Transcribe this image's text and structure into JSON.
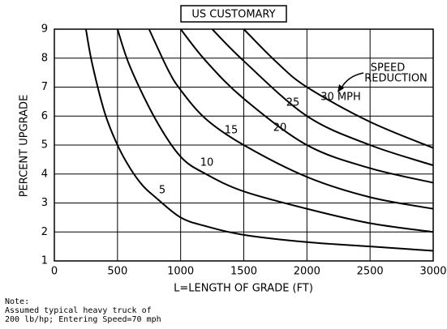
{
  "chart_data": {
    "type": "line",
    "title": "US CUSTOMARY",
    "xlabel": "L=LENGTH OF GRADE (FT)",
    "ylabel": "PERCENT UPGRADE",
    "annotation": [
      "SPEED",
      "REDUCTION"
    ],
    "note": [
      "Note:",
      "Assumed typical heavy truck of",
      "200 lb/hp; Entering Speed=70 mph"
    ],
    "xlim": [
      0,
      3000
    ],
    "ylim": [
      1,
      9
    ],
    "xticks": [
      0,
      500,
      1000,
      1500,
      2000,
      2500,
      3000
    ],
    "yticks": [
      1,
      2,
      3,
      4,
      5,
      6,
      7,
      8,
      9
    ],
    "grid": true,
    "series": [
      {
        "name": "5",
        "color": "#000000",
        "x": [
          250,
          300,
          400,
          500,
          600,
          700,
          800,
          1000,
          1200,
          1500,
          2000,
          2500,
          3000
        ],
        "values": [
          9,
          7.8,
          6.1,
          5.0,
          4.2,
          3.6,
          3.2,
          2.5,
          2.2,
          1.9,
          1.65,
          1.5,
          1.35
        ]
      },
      {
        "name": "10",
        "color": "#000000",
        "x": [
          500,
          600,
          800,
          1000,
          1200,
          1500,
          2000,
          2500,
          3000
        ],
        "values": [
          9,
          7.7,
          5.9,
          4.6,
          4.0,
          3.4,
          2.8,
          2.3,
          2.0
        ]
      },
      {
        "name": "15",
        "color": "#000000",
        "x": [
          750,
          900,
          1000,
          1200,
          1500,
          2000,
          2500,
          3000
        ],
        "values": [
          9,
          7.6,
          6.9,
          5.9,
          5.0,
          3.9,
          3.2,
          2.8
        ]
      },
      {
        "name": "20",
        "color": "#000000",
        "x": [
          1000,
          1200,
          1500,
          2000,
          2500,
          3000
        ],
        "values": [
          9,
          7.9,
          6.6,
          5.0,
          4.2,
          3.7
        ]
      },
      {
        "name": "25",
        "color": "#000000",
        "x": [
          1250,
          1500,
          2000,
          2500,
          3000
        ],
        "values": [
          9,
          7.9,
          6.0,
          5.0,
          4.3
        ]
      },
      {
        "name": "30 MPH",
        "color": "#000000",
        "x": [
          1500,
          1750,
          2000,
          2500,
          3000
        ],
        "values": [
          9,
          7.9,
          7.0,
          5.8,
          4.9
        ]
      }
    ]
  }
}
